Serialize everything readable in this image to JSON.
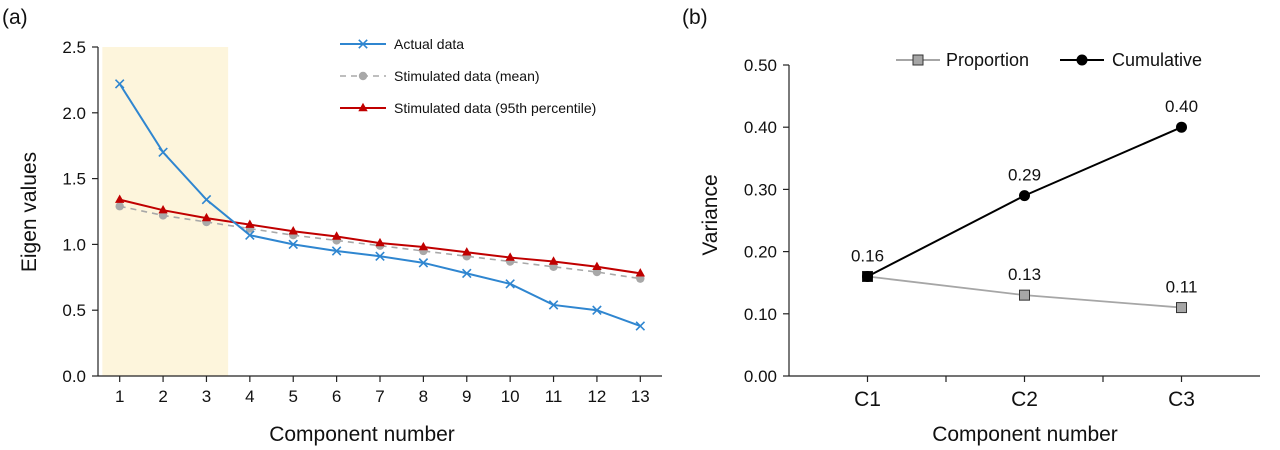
{
  "panels": {
    "a_label": "(a)",
    "b_label": "(b)"
  },
  "chart_data": [
    {
      "type": "line",
      "xlabel": "Component number",
      "ylabel": "Eigen values",
      "x": [
        1,
        2,
        3,
        4,
        5,
        6,
        7,
        8,
        9,
        10,
        11,
        12,
        13
      ],
      "ylim": [
        0,
        2.5
      ],
      "yticks": [
        "0.0",
        "0.5",
        "1.0",
        "1.5",
        "2.0",
        "2.5"
      ],
      "highlight_range": [
        0.6,
        3.5
      ],
      "highlight_color": "#fdf5dc",
      "legend_position": "top-right",
      "series": [
        {
          "name": "Actual data",
          "color": "#2f86d0",
          "marker": "x",
          "dashed": false,
          "values": [
            2.22,
            1.7,
            1.34,
            1.07,
            1.0,
            0.95,
            0.91,
            0.86,
            0.78,
            0.7,
            0.54,
            0.5,
            0.38
          ]
        },
        {
          "name": "Stimulated data (mean)",
          "color": "#a8a8a8",
          "marker": "circle",
          "dashed": true,
          "values": [
            1.29,
            1.22,
            1.17,
            1.12,
            1.07,
            1.03,
            0.99,
            0.95,
            0.91,
            0.87,
            0.83,
            0.79,
            0.74
          ]
        },
        {
          "name": "Stimulated data (95th percentile)",
          "color": "#c00000",
          "marker": "triangle",
          "dashed": false,
          "values": [
            1.34,
            1.26,
            1.2,
            1.15,
            1.1,
            1.06,
            1.01,
            0.98,
            0.94,
            0.9,
            0.87,
            0.83,
            0.78
          ]
        }
      ]
    },
    {
      "type": "line",
      "xlabel": "Component number",
      "ylabel": "Variance",
      "categories": [
        "C1",
        "C2",
        "C3"
      ],
      "ylim": [
        0,
        0.5
      ],
      "yticks": [
        "0.00",
        "0.10",
        "0.20",
        "0.30",
        "0.40",
        "0.50"
      ],
      "legend_position": "top",
      "series": [
        {
          "name": "Proportion",
          "color": "#a6a6a6",
          "marker": "square",
          "values": [
            0.16,
            0.13,
            0.11
          ],
          "labels": [
            "",
            "0.13",
            "0.11"
          ]
        },
        {
          "name": "Cumulative",
          "color": "#000000",
          "marker": "circle",
          "values": [
            0.16,
            0.29,
            0.4
          ],
          "labels": [
            "0.16",
            "0.29",
            "0.40"
          ]
        }
      ]
    }
  ]
}
